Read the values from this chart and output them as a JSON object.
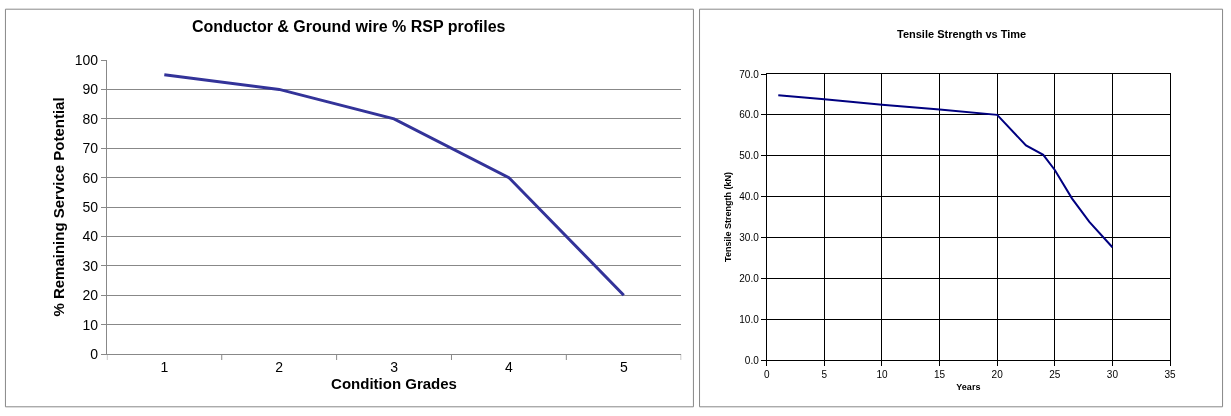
{
  "chart_data": [
    {
      "type": "line",
      "title": "Conductor & Ground wire % RSP profiles",
      "xlabel": "Condition Grades",
      "ylabel": "% Remaining Service Potential",
      "categories": [
        "1",
        "2",
        "3",
        "4",
        "5"
      ],
      "series": [
        {
          "color": "#333399",
          "values": [
            95,
            90,
            80,
            60,
            20
          ]
        }
      ],
      "ylim": [
        0,
        100
      ],
      "yticks": [
        0,
        10,
        20,
        30,
        40,
        50,
        60,
        70,
        80,
        90,
        100
      ],
      "grid": "y"
    },
    {
      "type": "line",
      "title": "Tensile Strength vs Time",
      "xlabel": "Years",
      "ylabel": "Tensile Strength (kN)",
      "series": [
        {
          "color": "#000080",
          "x": [
            1,
            5,
            10,
            15,
            20,
            22.5,
            24,
            25,
            26.5,
            28,
            30
          ],
          "values": [
            64.8,
            63.8,
            62.5,
            61.3,
            60.0,
            52.5,
            50.2,
            46.5,
            39.5,
            33.8,
            27.6
          ]
        }
      ],
      "xlim": [
        0,
        35
      ],
      "xticks": [
        0,
        5,
        10,
        15,
        20,
        25,
        30,
        35
      ],
      "ylim": [
        0,
        70
      ],
      "yticks": [
        {
          "value": 0,
          "label": "0.0"
        },
        {
          "value": 10,
          "label": "10.0"
        },
        {
          "value": 20,
          "label": "20.0"
        },
        {
          "value": 30,
          "label": "30.0"
        },
        {
          "value": 40,
          "label": "40.0"
        },
        {
          "value": 50,
          "label": "50.0"
        },
        {
          "value": 60,
          "label": "60.0"
        },
        {
          "value": 70,
          "label": "70.0"
        }
      ],
      "grid": true
    }
  ]
}
